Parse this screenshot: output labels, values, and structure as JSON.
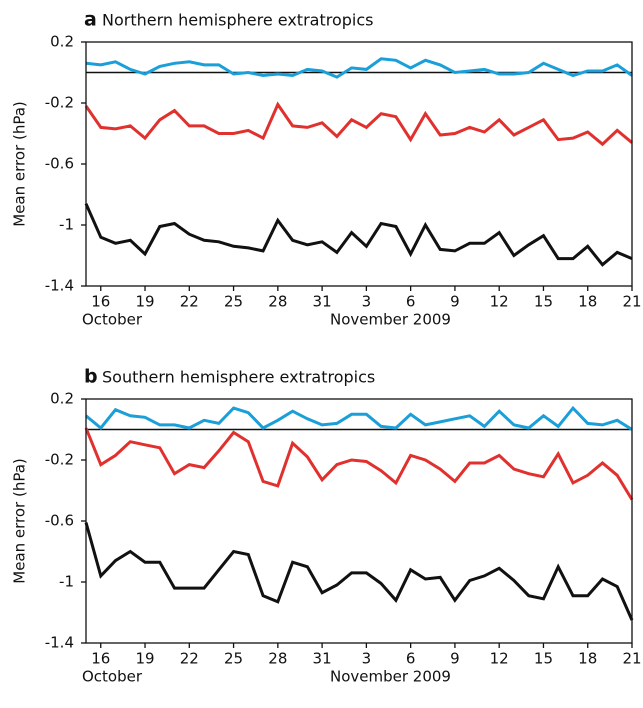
{
  "chart_data": [
    {
      "type": "line",
      "label": "a",
      "title": "Northern hemisphere extratropics",
      "ylabel": "Mean error (hPa)",
      "x": [
        "2009-10-15",
        "2009-10-16",
        "2009-10-17",
        "2009-10-18",
        "2009-10-19",
        "2009-10-20",
        "2009-10-21",
        "2009-10-22",
        "2009-10-23",
        "2009-10-24",
        "2009-10-25",
        "2009-10-26",
        "2009-10-27",
        "2009-10-28",
        "2009-10-29",
        "2009-10-30",
        "2009-10-31",
        "2009-11-01",
        "2009-11-02",
        "2009-11-03",
        "2009-11-04",
        "2009-11-05",
        "2009-11-06",
        "2009-11-07",
        "2009-11-08",
        "2009-11-09",
        "2009-11-10",
        "2009-11-11",
        "2009-11-12",
        "2009-11-13",
        "2009-11-14",
        "2009-11-15",
        "2009-11-16",
        "2009-11-17",
        "2009-11-18",
        "2009-11-19",
        "2009-11-20",
        "2009-11-21"
      ],
      "series": [
        {
          "color": "#1a9fd9",
          "values": [
            0.06,
            0.05,
            0.07,
            0.02,
            -0.01,
            0.04,
            0.06,
            0.07,
            0.05,
            0.05,
            -0.01,
            0.0,
            -0.02,
            -0.01,
            -0.02,
            0.02,
            0.01,
            -0.03,
            0.03,
            0.02,
            0.09,
            0.08,
            0.03,
            0.08,
            0.05,
            0.0,
            0.01,
            0.02,
            -0.01,
            -0.01,
            0.0,
            0.06,
            0.02,
            -0.02,
            0.01,
            0.01,
            0.05,
            -0.02
          ]
        },
        {
          "color": "#e1312f",
          "values": [
            -0.22,
            -0.36,
            -0.37,
            -0.35,
            -0.43,
            -0.31,
            -0.25,
            -0.35,
            -0.35,
            -0.4,
            -0.4,
            -0.38,
            -0.43,
            -0.21,
            -0.35,
            -0.36,
            -0.33,
            -0.42,
            -0.31,
            -0.36,
            -0.27,
            -0.29,
            -0.44,
            -0.27,
            -0.41,
            -0.4,
            -0.36,
            -0.39,
            -0.31,
            -0.41,
            -0.36,
            -0.31,
            -0.44,
            -0.43,
            -0.39,
            -0.47,
            -0.38,
            -0.46
          ]
        },
        {
          "color": "#111111",
          "values": [
            -0.86,
            -1.08,
            -1.12,
            -1.1,
            -1.19,
            -1.01,
            -0.99,
            -1.06,
            -1.1,
            -1.11,
            -1.14,
            -1.15,
            -1.17,
            -0.97,
            -1.1,
            -1.13,
            -1.11,
            -1.18,
            -1.05,
            -1.14,
            -0.99,
            -1.01,
            -1.19,
            -1.0,
            -1.16,
            -1.17,
            -1.12,
            -1.12,
            -1.05,
            -1.2,
            -1.13,
            -1.07,
            -1.22,
            -1.22,
            -1.14,
            -1.26,
            -1.18,
            -1.22
          ]
        }
      ],
      "reference_line": 0,
      "xlim": [
        "2009-10-15",
        "2009-11-21"
      ],
      "xticks": [
        {
          "value": "2009-10-16",
          "label": "16"
        },
        {
          "value": "2009-10-19",
          "label": "19"
        },
        {
          "value": "2009-10-22",
          "label": "22"
        },
        {
          "value": "2009-10-25",
          "label": "25"
        },
        {
          "value": "2009-10-28",
          "label": "28"
        },
        {
          "value": "2009-10-31",
          "label": "31"
        },
        {
          "value": "2009-11-03",
          "label": "3"
        },
        {
          "value": "2009-11-06",
          "label": "6"
        },
        {
          "value": "2009-11-09",
          "label": "9"
        },
        {
          "value": "2009-11-12",
          "label": "12"
        },
        {
          "value": "2009-11-15",
          "label": "15"
        },
        {
          "value": "2009-11-18",
          "label": "18"
        },
        {
          "value": "2009-11-21",
          "label": "21"
        }
      ],
      "month_labels": [
        "October",
        "November 2009"
      ],
      "ylim": [
        -1.4,
        0.2
      ],
      "yticks": [
        0.2,
        -0.2,
        -0.6,
        -1,
        -1.4
      ]
    },
    {
      "type": "line",
      "label": "b",
      "title": "Southern hemisphere extratropics",
      "ylabel": "Mean error (hPa)",
      "x": [
        "2009-10-15",
        "2009-10-16",
        "2009-10-17",
        "2009-10-18",
        "2009-10-19",
        "2009-10-20",
        "2009-10-21",
        "2009-10-22",
        "2009-10-23",
        "2009-10-24",
        "2009-10-25",
        "2009-10-26",
        "2009-10-27",
        "2009-10-28",
        "2009-10-29",
        "2009-10-30",
        "2009-10-31",
        "2009-11-01",
        "2009-11-02",
        "2009-11-03",
        "2009-11-04",
        "2009-11-05",
        "2009-11-06",
        "2009-11-07",
        "2009-11-08",
        "2009-11-09",
        "2009-11-10",
        "2009-11-11",
        "2009-11-12",
        "2009-11-13",
        "2009-11-14",
        "2009-11-15",
        "2009-11-16",
        "2009-11-17",
        "2009-11-18",
        "2009-11-19",
        "2009-11-20",
        "2009-11-21"
      ],
      "series": [
        {
          "color": "#1a9fd9",
          "values": [
            0.09,
            0.01,
            0.13,
            0.09,
            0.08,
            0.03,
            0.03,
            0.01,
            0.06,
            0.04,
            0.14,
            0.11,
            0.01,
            0.06,
            0.12,
            0.07,
            0.03,
            0.04,
            0.1,
            0.1,
            0.02,
            0.01,
            0.1,
            0.03,
            0.05,
            0.07,
            0.09,
            0.02,
            0.12,
            0.03,
            0.01,
            0.09,
            0.02,
            0.14,
            0.04,
            0.03,
            0.06,
            0.0
          ]
        },
        {
          "color": "#e1312f",
          "values": [
            0.01,
            -0.23,
            -0.17,
            -0.08,
            -0.1,
            -0.12,
            -0.29,
            -0.23,
            -0.25,
            -0.14,
            -0.02,
            -0.08,
            -0.34,
            -0.37,
            -0.09,
            -0.18,
            -0.33,
            -0.23,
            -0.2,
            -0.21,
            -0.27,
            -0.35,
            -0.17,
            -0.2,
            -0.26,
            -0.34,
            -0.22,
            -0.22,
            -0.17,
            -0.26,
            -0.29,
            -0.31,
            -0.16,
            -0.35,
            -0.3,
            -0.22,
            -0.3,
            -0.46
          ]
        },
        {
          "color": "#111111",
          "values": [
            -0.61,
            -0.96,
            -0.86,
            -0.8,
            -0.87,
            -0.87,
            -1.04,
            -1.04,
            -1.04,
            -0.92,
            -0.8,
            -0.82,
            -1.09,
            -1.13,
            -0.87,
            -0.9,
            -1.07,
            -1.02,
            -0.94,
            -0.94,
            -1.01,
            -1.12,
            -0.92,
            -0.98,
            -0.97,
            -1.12,
            -0.99,
            -0.96,
            -0.91,
            -0.99,
            -1.09,
            -1.11,
            -0.9,
            -1.09,
            -1.09,
            -0.98,
            -1.03,
            -1.25
          ]
        }
      ],
      "reference_line": 0,
      "xlim": [
        "2009-10-15",
        "2009-11-21"
      ],
      "xticks": [
        {
          "value": "2009-10-16",
          "label": "16"
        },
        {
          "value": "2009-10-19",
          "label": "19"
        },
        {
          "value": "2009-10-22",
          "label": "22"
        },
        {
          "value": "2009-10-25",
          "label": "25"
        },
        {
          "value": "2009-10-28",
          "label": "28"
        },
        {
          "value": "2009-10-31",
          "label": "31"
        },
        {
          "value": "2009-11-03",
          "label": "3"
        },
        {
          "value": "2009-11-06",
          "label": "6"
        },
        {
          "value": "2009-11-09",
          "label": "9"
        },
        {
          "value": "2009-11-12",
          "label": "12"
        },
        {
          "value": "2009-11-15",
          "label": "15"
        },
        {
          "value": "2009-11-18",
          "label": "18"
        },
        {
          "value": "2009-11-21",
          "label": "21"
        }
      ],
      "month_labels": [
        "October",
        "November 2009"
      ],
      "ylim": [
        -1.4,
        0.2
      ],
      "yticks": [
        0.2,
        -0.2,
        -0.6,
        -1,
        -1.4
      ]
    }
  ]
}
